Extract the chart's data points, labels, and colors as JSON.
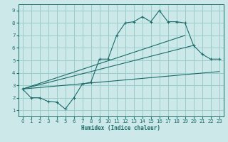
{
  "bg_color": "#cce8e8",
  "grid_color": "#99cccc",
  "line_color": "#1a6b6b",
  "xlim": [
    -0.5,
    23.5
  ],
  "ylim": [
    0.5,
    9.5
  ],
  "xticks": [
    0,
    1,
    2,
    3,
    4,
    5,
    6,
    7,
    8,
    9,
    10,
    11,
    12,
    13,
    14,
    15,
    16,
    17,
    18,
    19,
    20,
    21,
    22,
    23
  ],
  "yticks": [
    1,
    2,
    3,
    4,
    5,
    6,
    7,
    8,
    9
  ],
  "xlabel": "Humidex (Indice chaleur)",
  "series1_x": [
    0,
    1,
    2,
    3,
    4,
    5,
    6,
    7,
    8,
    9,
    10,
    11,
    12,
    13,
    14,
    15,
    16,
    17,
    18,
    19,
    20,
    21,
    22,
    23
  ],
  "series1_y": [
    2.7,
    2.0,
    2.0,
    1.7,
    1.65,
    1.1,
    2.0,
    3.1,
    3.25,
    5.1,
    5.1,
    7.0,
    8.0,
    8.1,
    8.5,
    8.1,
    9.0,
    8.1,
    8.1,
    8.0,
    6.2,
    5.5,
    5.1,
    5.1
  ],
  "series2_x": [
    0,
    19
  ],
  "series2_y": [
    2.7,
    7.0
  ],
  "series3_x": [
    0,
    23
  ],
  "series3_y": [
    2.7,
    4.1
  ],
  "series4_x": [
    0,
    20
  ],
  "series4_y": [
    2.7,
    6.2
  ]
}
